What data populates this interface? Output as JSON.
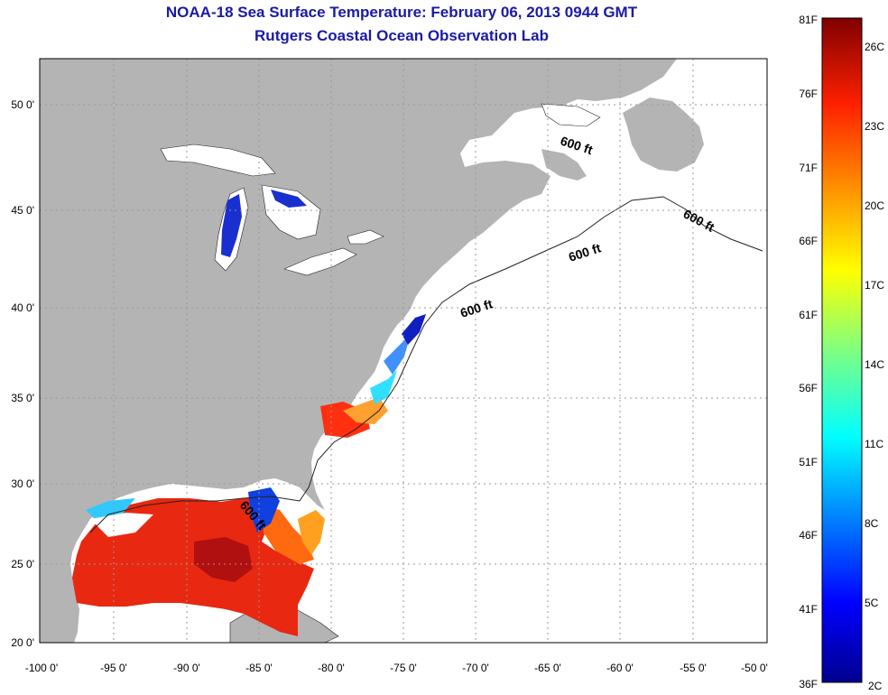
{
  "header": {
    "title": "NOAA-18 Sea Surface Temperature:  February 06, 2013 0944 GMT",
    "subtitle": "Rutgers Coastal Ocean Observation Lab"
  },
  "map": {
    "lat_labels": [
      "50 0'",
      "45 0'",
      "40 0'",
      "35 0'",
      "30 0'",
      "25 0'",
      "20 0'"
    ],
    "lon_labels": [
      "-100 0'",
      "-95 0'",
      "-90 0'",
      "-85 0'",
      "-80 0'",
      "-75 0'",
      "-70 0'",
      "-65 0'",
      "-60 0'",
      "-55 0'",
      "-50 0'"
    ],
    "isobath_labels": [
      "600 ft",
      "600 ft",
      "600 ft",
      "600 ft",
      "600 ft"
    ],
    "land_color": "#b4b4b4",
    "ocean_color": "#ffffff"
  },
  "colorbar": {
    "fahrenheit_labels": [
      "81F",
      "76F",
      "71F",
      "66F",
      "61F",
      "56F",
      "51F",
      "46F",
      "41F",
      "36F"
    ],
    "celsius_labels": [
      "26C",
      "23C",
      "20C",
      "17C",
      "14C",
      "11C",
      "8C",
      "5C",
      "2C"
    ]
  }
}
